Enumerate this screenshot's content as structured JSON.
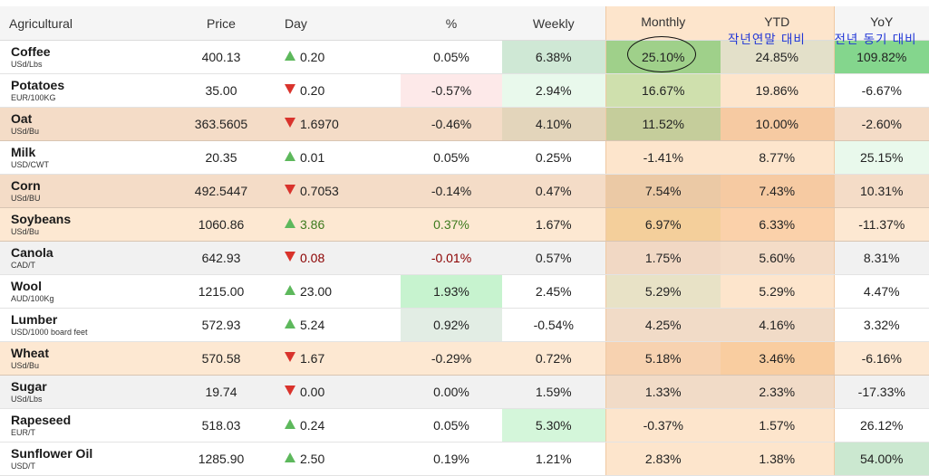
{
  "headers": {
    "name": "Agricultural",
    "price": "Price",
    "day": "Day",
    "pct": "%",
    "weekly": "Weekly",
    "monthly": "Monthly",
    "ytd": "YTD",
    "yoy": "YoY"
  },
  "annotations": {
    "ytd_note": "작년연말 대비",
    "yoy_note": "전년 동기 대비"
  },
  "colors": {
    "up_arrow": "#5db85c",
    "down_arrow": "#d9332c",
    "annotation_text": "#1f35d6"
  },
  "rows": [
    {
      "name": "Coffee",
      "unit": "USd/Lbs",
      "price": "400.13",
      "dir": "up",
      "day": "0.20",
      "pct": "0.05%",
      "weekly": "6.38%",
      "monthly": "25.10%",
      "ytd": "24.85%",
      "yoy": "109.82%"
    },
    {
      "name": "Potatoes",
      "unit": "EUR/100KG",
      "price": "35.00",
      "dir": "down",
      "day": "0.20",
      "pct": "-0.57%",
      "weekly": "2.94%",
      "monthly": "16.67%",
      "ytd": "19.86%",
      "yoy": "-6.67%"
    },
    {
      "name": "Oat",
      "unit": "USd/Bu",
      "price": "363.5605",
      "dir": "down",
      "day": "1.6970",
      "pct": "-0.46%",
      "weekly": "4.10%",
      "monthly": "11.52%",
      "ytd": "10.00%",
      "yoy": "-2.60%"
    },
    {
      "name": "Milk",
      "unit": "USD/CWT",
      "price": "20.35",
      "dir": "up",
      "day": "0.01",
      "pct": "0.05%",
      "weekly": "0.25%",
      "monthly": "-1.41%",
      "ytd": "8.77%",
      "yoy": "25.15%"
    },
    {
      "name": "Corn",
      "unit": "USd/BU",
      "price": "492.5447",
      "dir": "down",
      "day": "0.7053",
      "pct": "-0.14%",
      "weekly": "0.47%",
      "monthly": "7.54%",
      "ytd": "7.43%",
      "yoy": "10.31%"
    },
    {
      "name": "Soybeans",
      "unit": "USd/Bu",
      "price": "1060.86",
      "dir": "up",
      "day": "3.86",
      "pct": "0.37%",
      "weekly": "1.67%",
      "monthly": "6.97%",
      "ytd": "6.33%",
      "yoy": "-11.37%"
    },
    {
      "name": "Canola",
      "unit": "CAD/T",
      "price": "642.93",
      "dir": "down",
      "day": "0.08",
      "pct": "-0.01%",
      "weekly": "0.57%",
      "monthly": "1.75%",
      "ytd": "5.60%",
      "yoy": "8.31%"
    },
    {
      "name": "Wool",
      "unit": "AUD/100Kg",
      "price": "1215.00",
      "dir": "up",
      "day": "23.00",
      "pct": "1.93%",
      "weekly": "2.45%",
      "monthly": "5.29%",
      "ytd": "5.29%",
      "yoy": "4.47%"
    },
    {
      "name": "Lumber",
      "unit": "USD/1000 board feet",
      "price": "572.93",
      "dir": "up",
      "day": "5.24",
      "pct": "0.92%",
      "weekly": "-0.54%",
      "monthly": "4.25%",
      "ytd": "4.16%",
      "yoy": "3.32%"
    },
    {
      "name": "Wheat",
      "unit": "USd/Bu",
      "price": "570.58",
      "dir": "down",
      "day": "1.67",
      "pct": "-0.29%",
      "weekly": "0.72%",
      "monthly": "5.18%",
      "ytd": "3.46%",
      "yoy": "-6.16%"
    },
    {
      "name": "Sugar",
      "unit": "USd/Lbs",
      "price": "19.74",
      "dir": "down",
      "day": "0.00",
      "pct": "0.00%",
      "weekly": "1.59%",
      "monthly": "1.33%",
      "ytd": "2.33%",
      "yoy": "-17.33%"
    },
    {
      "name": "Rapeseed",
      "unit": "EUR/T",
      "price": "518.03",
      "dir": "up",
      "day": "0.24",
      "pct": "0.05%",
      "weekly": "5.30%",
      "monthly": "-0.37%",
      "ytd": "1.57%",
      "yoy": "26.12%"
    },
    {
      "name": "Sunflower Oil",
      "unit": "USD/T",
      "price": "1285.90",
      "dir": "up",
      "day": "2.50",
      "pct": "0.19%",
      "weekly": "1.21%",
      "monthly": "2.83%",
      "ytd": "1.38%",
      "yoy": "54.00%"
    }
  ]
}
